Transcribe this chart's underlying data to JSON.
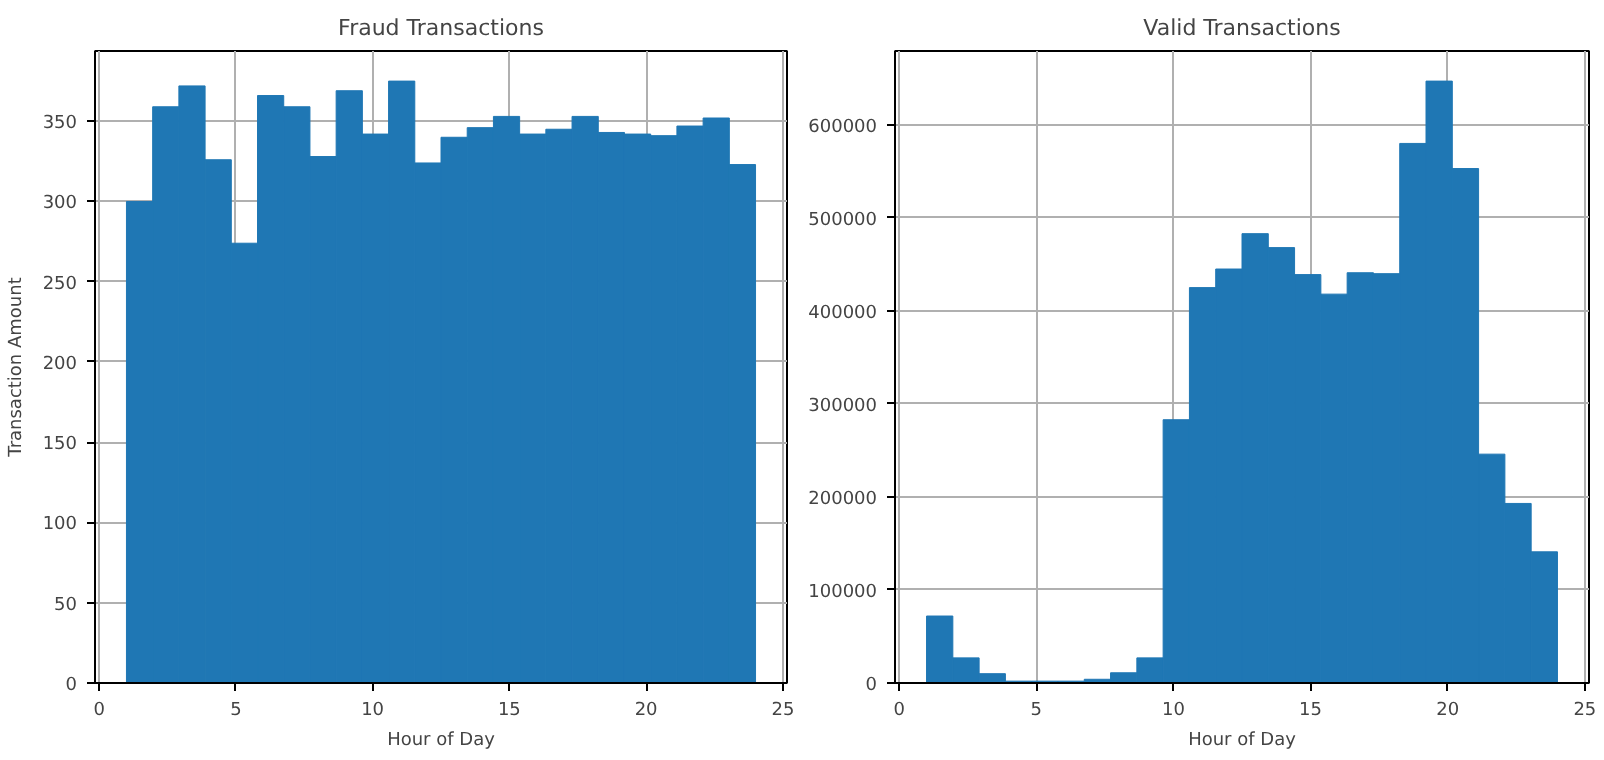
{
  "chart_data": [
    {
      "type": "histogram",
      "title": "Fraud Transactions",
      "xlabel": "Hour of Day",
      "ylabel": "Transaction Amount",
      "color": "#1f77b4",
      "grid": true,
      "bins": [
        1,
        1.9583,
        2.9167,
        3.875,
        4.8333,
        5.7917,
        6.75,
        7.7083,
        8.6667,
        9.625,
        10.5833,
        11.5417,
        12.5,
        13.4583,
        14.4167,
        15.375,
        16.3333,
        17.2917,
        18.25,
        19.2083,
        20.1667,
        21.125,
        22.0833,
        23.0417,
        24
      ],
      "values": [
        300,
        359,
        372,
        326,
        274,
        366,
        359,
        328,
        369,
        342,
        375,
        324,
        340,
        346,
        353,
        342,
        345,
        353,
        343,
        342,
        341,
        347,
        352,
        323
      ],
      "xlim": [
        -0.15,
        25.15
      ],
      "xticks": [
        0,
        5,
        10,
        15,
        20,
        25
      ],
      "ylim": [
        0,
        393.75
      ],
      "yticks": [
        0,
        50,
        100,
        150,
        200,
        250,
        300,
        350
      ]
    },
    {
      "type": "histogram",
      "title": "Valid Transactions",
      "xlabel": "Hour of Day",
      "color": "#1f77b4",
      "grid": true,
      "bins": [
        1,
        1.9583,
        2.9167,
        3.875,
        4.8333,
        5.7917,
        6.75,
        7.7083,
        8.6667,
        9.625,
        10.5833,
        11.5417,
        12.5,
        13.4583,
        14.4167,
        15.375,
        16.3333,
        17.2917,
        18.25,
        19.2083,
        20.1667,
        21.125,
        22.0833,
        23.0417,
        24
      ],
      "values": [
        72000,
        27000,
        10000,
        2000,
        2000,
        2000,
        4000,
        11000,
        27000,
        283000,
        425000,
        445000,
        483000,
        468000,
        439000,
        418000,
        441000,
        440000,
        580000,
        647000,
        553000,
        246000,
        193000,
        141000
      ],
      "xlim": [
        -0.15,
        25.15
      ],
      "xticks": [
        0,
        5,
        10,
        15,
        20,
        25
      ],
      "ylim": [
        0,
        679350
      ],
      "yticks": [
        0,
        100000,
        200000,
        300000,
        400000,
        500000,
        600000
      ]
    }
  ]
}
